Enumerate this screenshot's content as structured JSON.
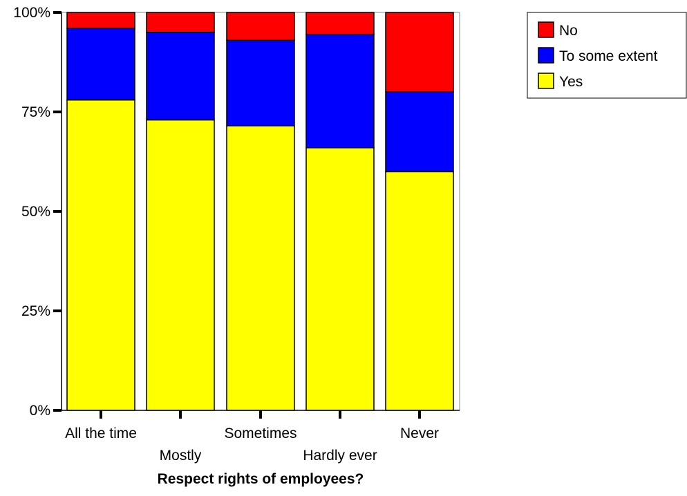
{
  "chart_data": {
    "type": "bar",
    "stacked": true,
    "normalized": true,
    "xlabel": "Respect rights of employees?",
    "ylabel": "",
    "ylim": [
      0,
      100
    ],
    "y_ticks": [
      "0%",
      "25%",
      "50%",
      "75%",
      "100%"
    ],
    "y_tick_values": [
      0,
      25,
      50,
      75,
      100
    ],
    "categories": [
      "All the time",
      "Mostly",
      "Sometimes",
      "Hardly ever",
      "Never"
    ],
    "series": [
      {
        "name": "Yes",
        "color": "#ffff00",
        "values": [
          78,
          73,
          71.5,
          66,
          60
        ]
      },
      {
        "name": "To some extent",
        "color": "#0000ff",
        "values": [
          18,
          22,
          21.5,
          28.5,
          20
        ]
      },
      {
        "name": "No",
        "color": "#ff0000",
        "values": [
          4,
          5,
          7,
          5.5,
          20
        ]
      }
    ],
    "legend": {
      "position": "top-right",
      "entries": [
        "No",
        "To some extent",
        "Yes"
      ]
    },
    "grid": false
  }
}
